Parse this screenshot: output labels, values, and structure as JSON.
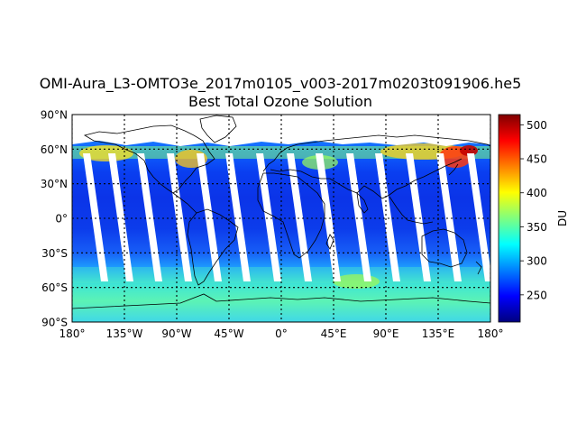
{
  "title": {
    "line1": "OMI-Aura_L3-OMTO3e_2017m0105_v003-2017m0203t091906.he5",
    "line2": "Best Total Ozone Solution"
  },
  "map": {
    "projection": "equirectangular",
    "lon_range": [
      -180,
      180
    ],
    "lat_range": [
      -90,
      90
    ],
    "x_ticks": [
      {
        "value": -180,
        "label": "180°"
      },
      {
        "value": -135,
        "label": "135°W"
      },
      {
        "value": -90,
        "label": "90°W"
      },
      {
        "value": -45,
        "label": "45°W"
      },
      {
        "value": 0,
        "label": "0°"
      },
      {
        "value": 45,
        "label": "45°E"
      },
      {
        "value": 90,
        "label": "90°E"
      },
      {
        "value": 135,
        "label": "135°E"
      },
      {
        "value": 180,
        "label": "180°"
      }
    ],
    "y_ticks": [
      {
        "value": 90,
        "label": "90°N"
      },
      {
        "value": 60,
        "label": "60°N"
      },
      {
        "value": 30,
        "label": "30°N"
      },
      {
        "value": 0,
        "label": "0°"
      },
      {
        "value": -30,
        "label": "30°S"
      },
      {
        "value": -60,
        "label": "60°S"
      },
      {
        "value": -90,
        "label": "90°S"
      }
    ],
    "gridlines": "dotted",
    "polar_night_no_data_north_of": 62,
    "orbit_gap_count": 14,
    "colors": {
      "no_data": "#ffffff",
      "coastline": "#000000"
    }
  },
  "colorbar": {
    "label": "DU",
    "min": 210,
    "max": 515,
    "ticks": [
      250,
      300,
      350,
      400,
      450,
      500
    ],
    "colormap": "jet"
  }
}
